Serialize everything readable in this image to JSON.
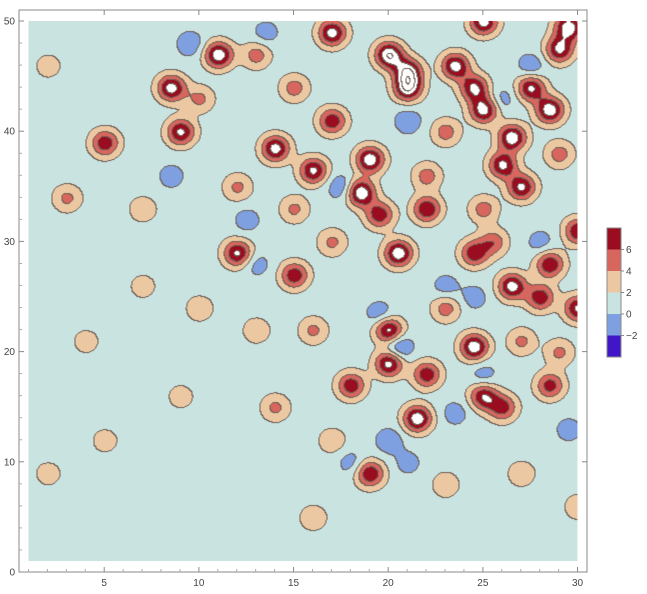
{
  "chart_data": {
    "type": "contour",
    "title": "",
    "xlabel": "",
    "ylabel": "",
    "xlim": [
      0.5,
      30.5
    ],
    "ylim": [
      0,
      51
    ],
    "data_extent": {
      "x": [
        1,
        30
      ],
      "y": [
        1,
        50
      ]
    },
    "x_ticks": [
      5,
      10,
      15,
      20,
      25,
      30
    ],
    "y_ticks": [
      0,
      10,
      20,
      30,
      40,
      50
    ],
    "x_tick_labels": [
      "5",
      "10",
      "15",
      "20",
      "25",
      "30"
    ],
    "y_tick_labels": [
      "0",
      "10",
      "20",
      "30",
      "40",
      "50"
    ],
    "contour_levels": [
      -4,
      -2,
      0,
      2,
      4,
      6,
      8
    ],
    "level_colors": [
      {
        "range": [
          -4,
          -2
        ],
        "color": "#4016c8"
      },
      {
        "range": [
          -2,
          0
        ],
        "color": "#7e9fe0"
      },
      {
        "range": [
          0,
          2
        ],
        "color": "#c9e3e1"
      },
      {
        "range": [
          2,
          4
        ],
        "color": "#ebc8a1"
      },
      {
        "range": [
          4,
          6
        ],
        "color": "#d7665e"
      },
      {
        "range": [
          6,
          8
        ],
        "color": "#9a0c1f"
      },
      {
        "range": [
          8,
          99
        ],
        "color": "#ffffff"
      }
    ],
    "legend": {
      "placement": "right",
      "tick_labels": [
        "6",
        "4",
        "2",
        "0",
        "−2"
      ],
      "tick_values": [
        6,
        4,
        2,
        0,
        -2
      ]
    },
    "peaks": [
      {
        "x": 11,
        "y": 47,
        "v": 9.5
      },
      {
        "x": 17,
        "y": 49,
        "v": 9
      },
      {
        "x": 20,
        "y": 47,
        "v": 10
      },
      {
        "x": 25,
        "y": 50,
        "v": 9
      },
      {
        "x": 29.5,
        "y": 49.5,
        "v": 9.5
      },
      {
        "x": 29,
        "y": 47.5,
        "v": 8.5
      },
      {
        "x": 21,
        "y": 45.5,
        "v": 9
      },
      {
        "x": 23.5,
        "y": 46,
        "v": 9
      },
      {
        "x": 21,
        "y": 44,
        "v": 9.5
      },
      {
        "x": 24.5,
        "y": 44,
        "v": 8.5
      },
      {
        "x": 27.5,
        "y": 44,
        "v": 8.5
      },
      {
        "x": 28.5,
        "y": 42,
        "v": 9.5
      },
      {
        "x": 25,
        "y": 42,
        "v": 9
      },
      {
        "x": 8.5,
        "y": 44,
        "v": 9
      },
      {
        "x": 9,
        "y": 40,
        "v": 8.5
      },
      {
        "x": 5,
        "y": 39,
        "v": 7.5
      },
      {
        "x": 14,
        "y": 38.5,
        "v": 9
      },
      {
        "x": 16,
        "y": 36.5,
        "v": 8.5
      },
      {
        "x": 17,
        "y": 41,
        "v": 7.5
      },
      {
        "x": 19,
        "y": 37.5,
        "v": 9.5
      },
      {
        "x": 18.5,
        "y": 34.5,
        "v": 10
      },
      {
        "x": 19.5,
        "y": 32.5,
        "v": 7.5
      },
      {
        "x": 26.5,
        "y": 39.5,
        "v": 9.5
      },
      {
        "x": 26,
        "y": 37,
        "v": 8.5
      },
      {
        "x": 27,
        "y": 35,
        "v": 8.5
      },
      {
        "x": 22,
        "y": 33,
        "v": 8
      },
      {
        "x": 30,
        "y": 31,
        "v": 8
      },
      {
        "x": 12,
        "y": 29,
        "v": 8.5
      },
      {
        "x": 15,
        "y": 27,
        "v": 7.5
      },
      {
        "x": 20.5,
        "y": 29,
        "v": 9.5
      },
      {
        "x": 24.5,
        "y": 29,
        "v": 7.5
      },
      {
        "x": 26.5,
        "y": 26,
        "v": 9
      },
      {
        "x": 28.5,
        "y": 28,
        "v": 8
      },
      {
        "x": 28,
        "y": 25,
        "v": 7.5
      },
      {
        "x": 30,
        "y": 24,
        "v": 8.5
      },
      {
        "x": 25.5,
        "y": 30,
        "v": 5.5
      },
      {
        "x": 20,
        "y": 22,
        "v": 9
      },
      {
        "x": 20,
        "y": 19,
        "v": 9
      },
      {
        "x": 24.5,
        "y": 20.5,
        "v": 9.5
      },
      {
        "x": 22,
        "y": 18,
        "v": 7.5
      },
      {
        "x": 18,
        "y": 17,
        "v": 7.5
      },
      {
        "x": 21.5,
        "y": 14,
        "v": 9.5
      },
      {
        "x": 25,
        "y": 16,
        "v": 8
      },
      {
        "x": 26,
        "y": 15,
        "v": 7
      },
      {
        "x": 28.5,
        "y": 17,
        "v": 7
      },
      {
        "x": 19,
        "y": 9,
        "v": 8
      },
      {
        "x": 13,
        "y": 47,
        "v": 5
      },
      {
        "x": 15,
        "y": 44,
        "v": 5
      },
      {
        "x": 10,
        "y": 43,
        "v": 4.5
      },
      {
        "x": 23,
        "y": 40,
        "v": 5
      },
      {
        "x": 29,
        "y": 38,
        "v": 5
      },
      {
        "x": 25,
        "y": 33,
        "v": 5
      },
      {
        "x": 17,
        "y": 30,
        "v": 4.5
      },
      {
        "x": 29,
        "y": 20,
        "v": 4.5
      },
      {
        "x": 16,
        "y": 22,
        "v": 4.5
      },
      {
        "x": 14,
        "y": 15,
        "v": 4.5
      },
      {
        "x": 3,
        "y": 34,
        "v": 4.5
      },
      {
        "x": 7,
        "y": 33,
        "v": 3.5
      },
      {
        "x": 23,
        "y": 24,
        "v": 5
      },
      {
        "x": 27,
        "y": 21,
        "v": 4.5
      },
      {
        "x": 15,
        "y": 33,
        "v": 4.5
      },
      {
        "x": 22,
        "y": 36,
        "v": 5
      },
      {
        "x": 12,
        "y": 35,
        "v": 4.5
      },
      {
        "x": 10,
        "y": 24,
        "v": 3.5
      },
      {
        "x": 13,
        "y": 22,
        "v": 3.5
      },
      {
        "x": 17,
        "y": 12,
        "v": 3.5
      },
      {
        "x": 9,
        "y": 16,
        "v": 3
      },
      {
        "x": 5,
        "y": 12,
        "v": 3
      },
      {
        "x": 2,
        "y": 46,
        "v": 3
      },
      {
        "x": 2,
        "y": 9,
        "v": 3
      },
      {
        "x": 30,
        "y": 6,
        "v": 3.5
      },
      {
        "x": 27,
        "y": 9,
        "v": 3.5
      },
      {
        "x": 23,
        "y": 8,
        "v": 3.5
      },
      {
        "x": 16,
        "y": 5,
        "v": 3.5
      },
      {
        "x": 7,
        "y": 26,
        "v": 3
      },
      {
        "x": 4,
        "y": 21,
        "v": 3
      }
    ],
    "troughs": [
      {
        "x": 9.5,
        "y": 48,
        "v": -1.5
      },
      {
        "x": 13.5,
        "y": 49,
        "v": -1
      },
      {
        "x": 20.5,
        "y": 20.5,
        "v": -3
      },
      {
        "x": 17.5,
        "y": 35,
        "v": -2
      },
      {
        "x": 19.5,
        "y": 23.5,
        "v": -1.5
      },
      {
        "x": 23,
        "y": 26,
        "v": -1
      },
      {
        "x": 27.5,
        "y": 46,
        "v": -1.5
      },
      {
        "x": 26,
        "y": 43,
        "v": -1
      },
      {
        "x": 20,
        "y": 12,
        "v": -1.5
      },
      {
        "x": 23.5,
        "y": 14.5,
        "v": -1
      },
      {
        "x": 25,
        "y": 18,
        "v": -1
      },
      {
        "x": 29.5,
        "y": 13,
        "v": -1
      },
      {
        "x": 12.5,
        "y": 32,
        "v": -1
      },
      {
        "x": 8.5,
        "y": 36,
        "v": -1
      },
      {
        "x": 21,
        "y": 41,
        "v": -1.5
      },
      {
        "x": 18,
        "y": 10,
        "v": -1
      },
      {
        "x": 21,
        "y": 10,
        "v": -0.8
      },
      {
        "x": 13,
        "y": 28,
        "v": -1
      },
      {
        "x": 28,
        "y": 30,
        "v": -1
      },
      {
        "x": 24.5,
        "y": 25,
        "v": -1
      }
    ]
  }
}
